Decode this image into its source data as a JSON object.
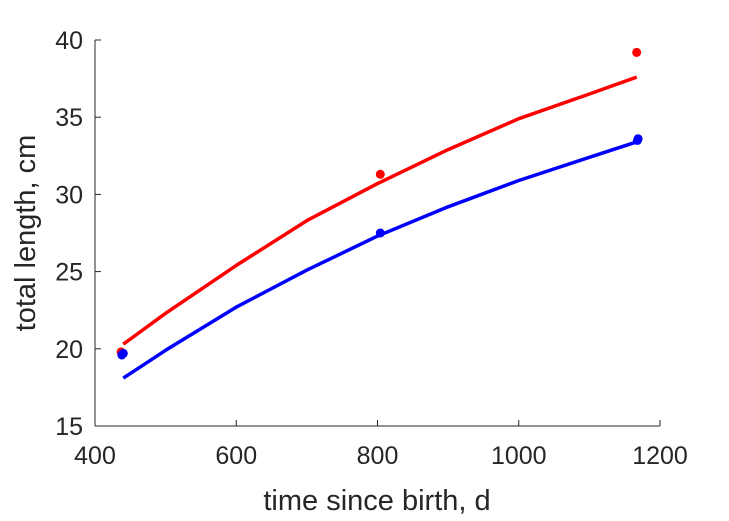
{
  "chart_data": {
    "type": "line",
    "title": "",
    "xlabel": "time since birth, d",
    "ylabel": "total length, cm",
    "xlim": [
      400,
      1200
    ],
    "ylim": [
      15,
      40
    ],
    "xticks": [
      400,
      600,
      800,
      1000,
      1200
    ],
    "yticks": [
      15,
      20,
      25,
      30,
      35,
      40
    ],
    "grid": false,
    "legend": "none",
    "series": [
      {
        "color": "#ff0000",
        "points": [
          {
            "x": 437,
            "y": 19.8
          },
          {
            "x": 804,
            "y": 31.3
          },
          {
            "x": 1167,
            "y": 39.2
          }
        ],
        "fit": [
          {
            "x": 440,
            "y": 20.3
          },
          {
            "x": 500,
            "y": 22.3
          },
          {
            "x": 600,
            "y": 25.4
          },
          {
            "x": 700,
            "y": 28.3
          },
          {
            "x": 800,
            "y": 30.7
          },
          {
            "x": 900,
            "y": 32.9
          },
          {
            "x": 1000,
            "y": 34.9
          },
          {
            "x": 1100,
            "y": 36.5
          },
          {
            "x": 1167,
            "y": 37.6
          }
        ]
      },
      {
        "color": "#0000ff",
        "points": [
          {
            "x": 438,
            "y": 19.6
          },
          {
            "x": 440,
            "y": 19.7
          },
          {
            "x": 804,
            "y": 27.5
          },
          {
            "x": 1168,
            "y": 33.5
          },
          {
            "x": 1169,
            "y": 33.6
          }
        ],
        "fit": [
          {
            "x": 440,
            "y": 18.1
          },
          {
            "x": 500,
            "y": 19.9
          },
          {
            "x": 600,
            "y": 22.7
          },
          {
            "x": 700,
            "y": 25.1
          },
          {
            "x": 800,
            "y": 27.3
          },
          {
            "x": 900,
            "y": 29.2
          },
          {
            "x": 1000,
            "y": 30.9
          },
          {
            "x": 1100,
            "y": 32.4
          },
          {
            "x": 1167,
            "y": 33.4
          }
        ]
      }
    ]
  }
}
